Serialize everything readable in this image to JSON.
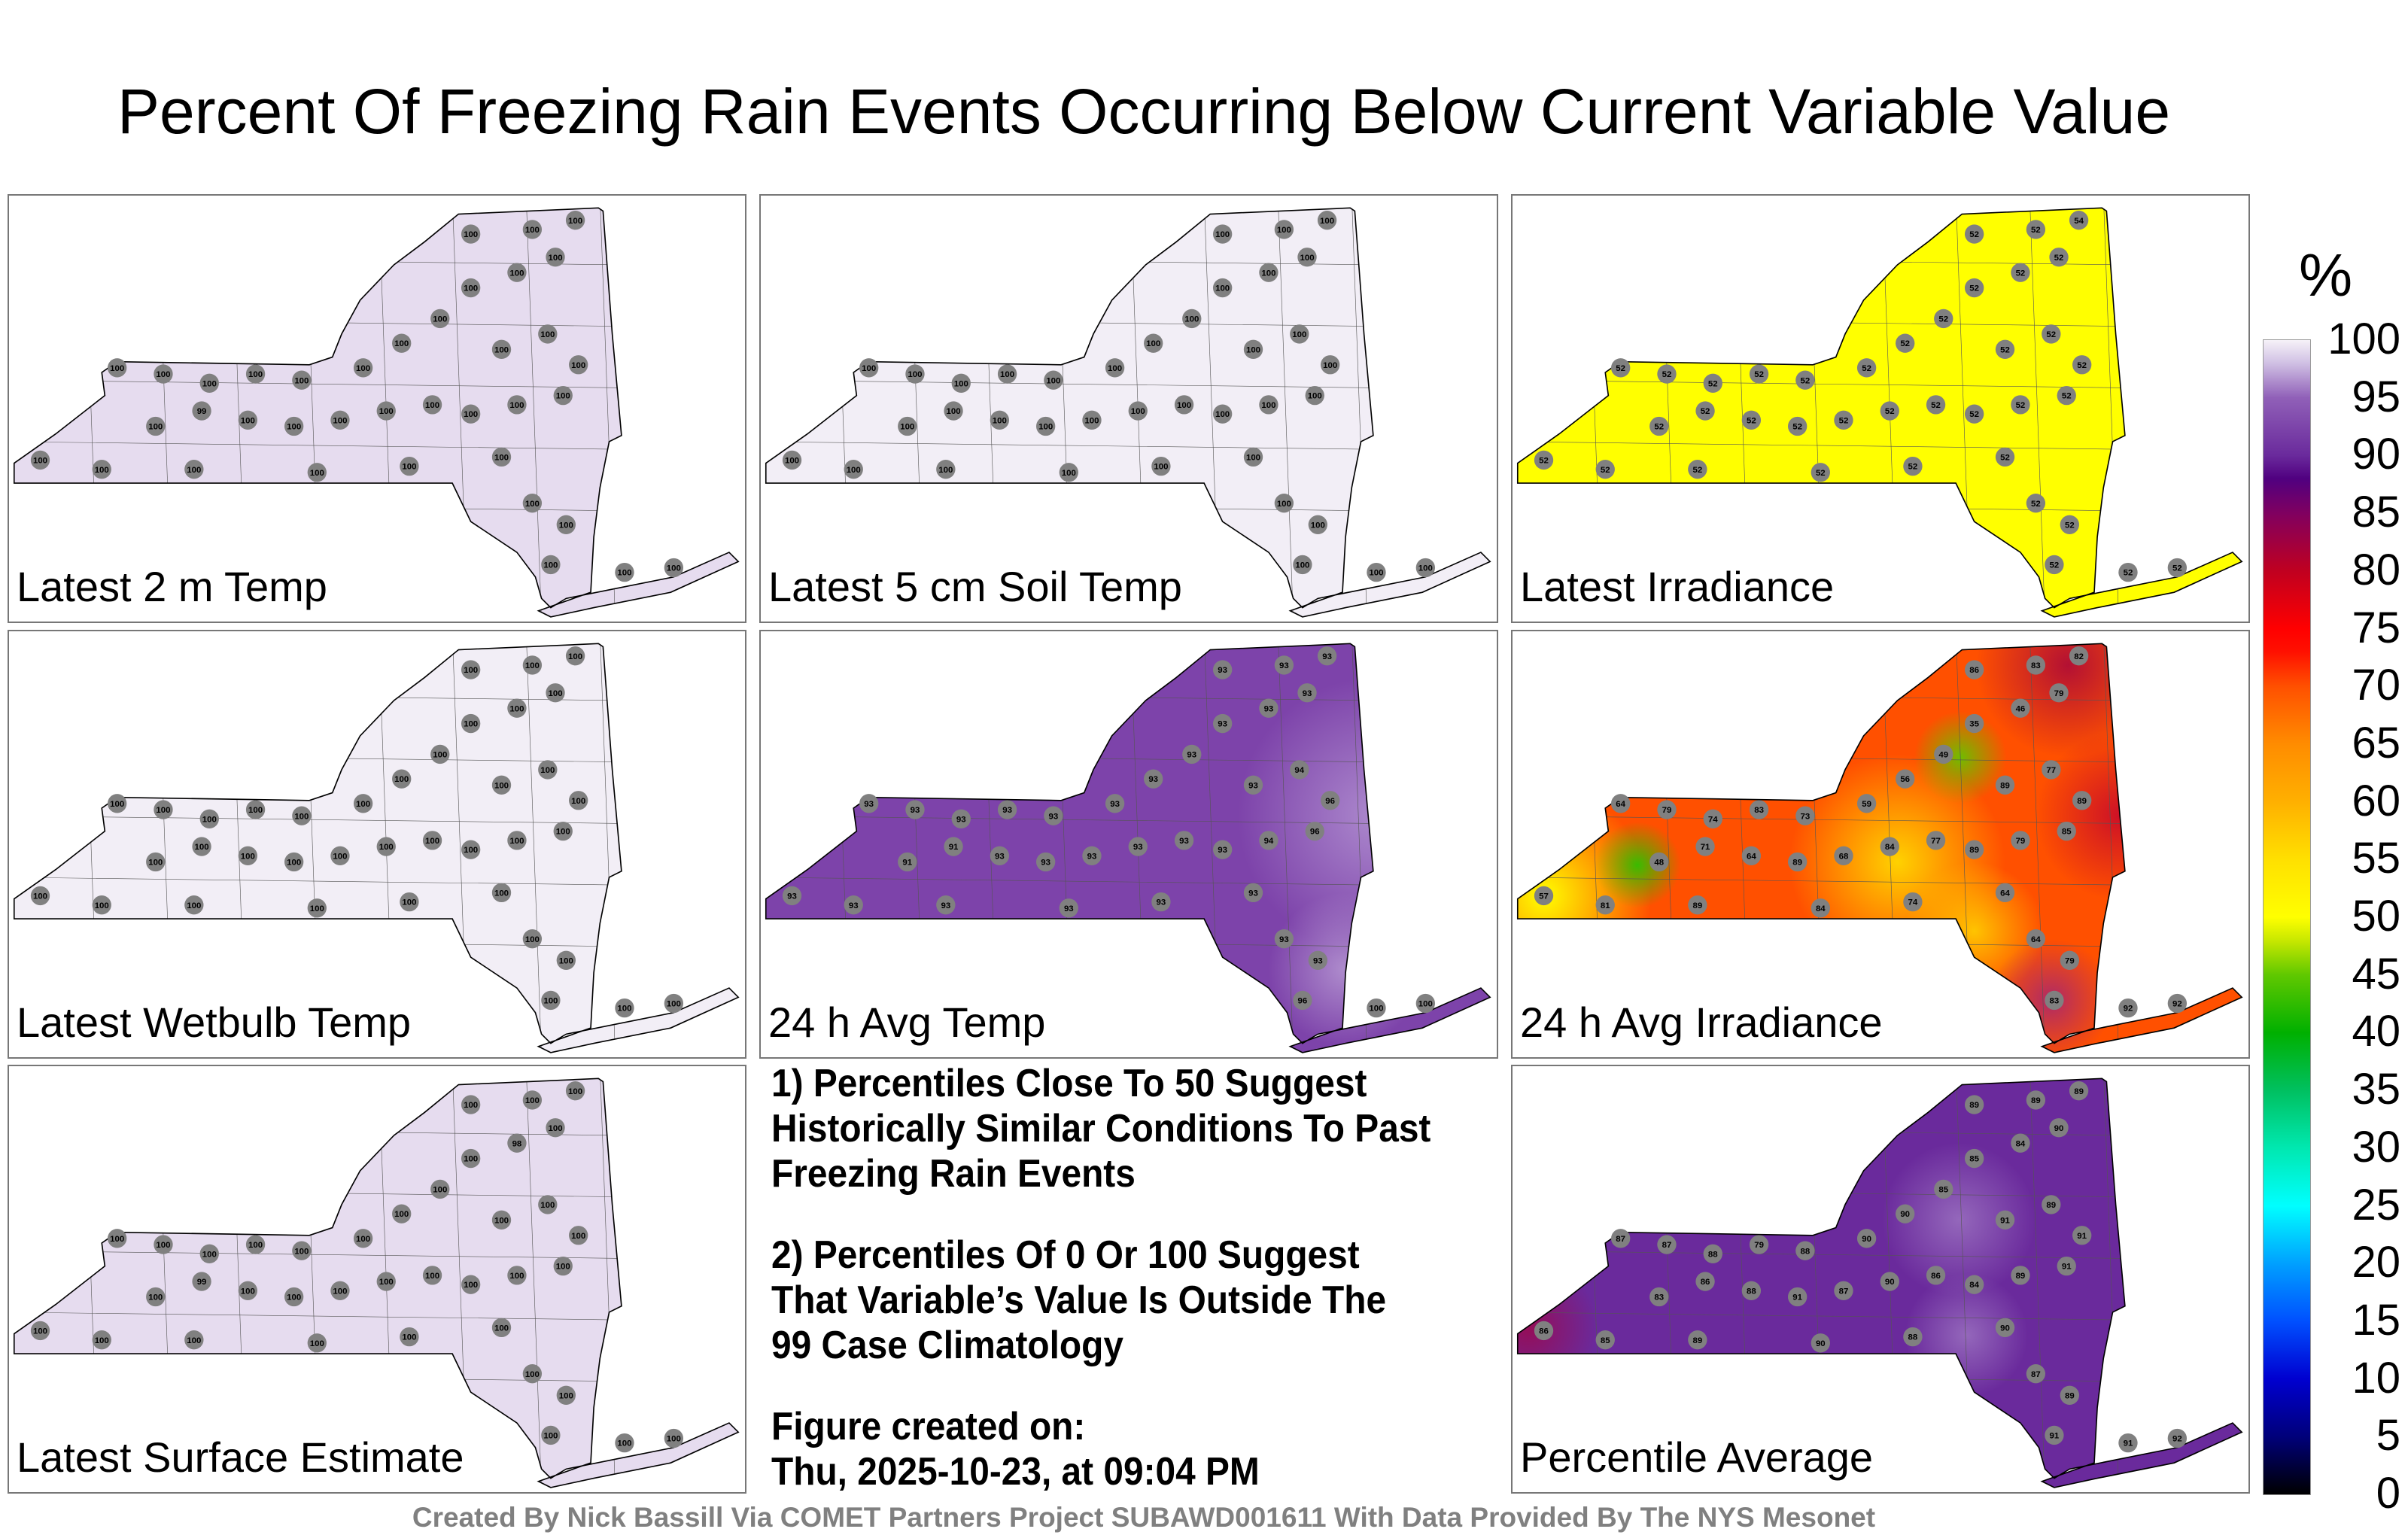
{
  "title": "Percent Of Freezing Rain Events Occurring Below Current Variable Value",
  "colorbar": {
    "unit": "%",
    "ticks": [
      "100",
      "95",
      "90",
      "85",
      "80",
      "75",
      "70",
      "65",
      "60",
      "55",
      "50",
      "45",
      "40",
      "35",
      "30",
      "25",
      "20",
      "15",
      "10",
      "5",
      "0"
    ]
  },
  "chart_data": {
    "type": "map",
    "title": "Percent Of Freezing Rain Events Occurring Below Current Variable Value",
    "colorbar_range": [
      0,
      100
    ],
    "panels": [
      {
        "label": "Latest 2 m Temp",
        "base_color": "#e6dcef",
        "values": [
          100,
          100,
          100,
          100,
          100,
          100,
          100,
          99,
          100,
          100,
          100,
          100,
          100,
          100,
          100,
          100,
          100,
          100,
          100,
          100,
          100,
          100,
          100,
          100,
          100,
          100,
          100,
          100,
          100,
          100,
          100,
          100,
          100,
          100,
          100,
          100,
          100,
          100
        ]
      },
      {
        "label": "Latest 5 cm Soil Temp",
        "base_color": "#f2eef6",
        "values": [
          100,
          100,
          100,
          100,
          100,
          100,
          100,
          100,
          100,
          100,
          100,
          100,
          100,
          100,
          100,
          100,
          100,
          100,
          100,
          100,
          100,
          100,
          100,
          100,
          100,
          100,
          100,
          100,
          100,
          100,
          100,
          100,
          100,
          100,
          100,
          100,
          100,
          100
        ]
      },
      {
        "label": "Latest Irradiance",
        "base_color": "#ffff00",
        "values": [
          52,
          52,
          52,
          52,
          52,
          52,
          52,
          52,
          52,
          52,
          52,
          52,
          52,
          52,
          52,
          52,
          52,
          52,
          52,
          52,
          52,
          52,
          52,
          52,
          54,
          52,
          52,
          52,
          52,
          52,
          52,
          52,
          52,
          52,
          52,
          52,
          52,
          52
        ]
      },
      {
        "label": "Latest Wetbulb Temp",
        "base_color": "#f2eef6",
        "values": [
          100,
          100,
          100,
          100,
          100,
          100,
          100,
          100,
          100,
          100,
          100,
          100,
          100,
          100,
          100,
          100,
          100,
          100,
          100,
          100,
          100,
          100,
          100,
          100,
          100,
          100,
          100,
          100,
          100,
          100,
          100,
          100,
          100,
          100,
          100,
          100,
          100,
          100
        ]
      },
      {
        "label": "24 h Avg Temp",
        "base_color": "#7d43aa",
        "values": [
          93,
          93,
          93,
          93,
          93,
          93,
          91,
          91,
          93,
          93,
          93,
          93,
          93,
          93,
          94,
          96,
          93,
          93,
          93,
          93,
          93,
          93,
          93,
          93,
          93,
          93,
          94,
          96,
          93,
          93,
          93,
          93,
          93,
          93,
          93,
          96,
          100,
          100
        ]
      },
      {
        "label": "24 h Avg Irradiance",
        "base_color": "#ff5000",
        "values": [
          57,
          64,
          79,
          74,
          83,
          73,
          48,
          71,
          64,
          89,
          68,
          84,
          77,
          89,
          79,
          85,
          59,
          56,
          49,
          35,
          46,
          79,
          86,
          83,
          82,
          89,
          77,
          89,
          81,
          89,
          84,
          74,
          64,
          64,
          79,
          83,
          92,
          92
        ]
      },
      {
        "label": "Percentile Average",
        "base_color": "#6a2a9c",
        "values": [
          86,
          87,
          87,
          88,
          79,
          88,
          83,
          86,
          88,
          91,
          87,
          90,
          86,
          84,
          89,
          91,
          90,
          90,
          85,
          85,
          84,
          90,
          89,
          89,
          89,
          91,
          89,
          91,
          85,
          89,
          90,
          88,
          90,
          87,
          89,
          91,
          91,
          92
        ]
      }
    ]
  },
  "notes": [
    "1) Percentiles Close To 50 Suggest Historically Similar Conditions To Past Freezing Rain Events",
    "2) Percentiles Of 0 Or 100 Suggest That Variable’s Value Is Outside The 99 Case Climatology"
  ],
  "created": {
    "label": "Figure created on:",
    "timestamp": "Thu, 2025-10-23, at 09:04 PM"
  },
  "footer": "Created By Nick Bassill Via COMET Partners Project SUBAWD001611 With Data Provided By The NYS Mesonet"
}
